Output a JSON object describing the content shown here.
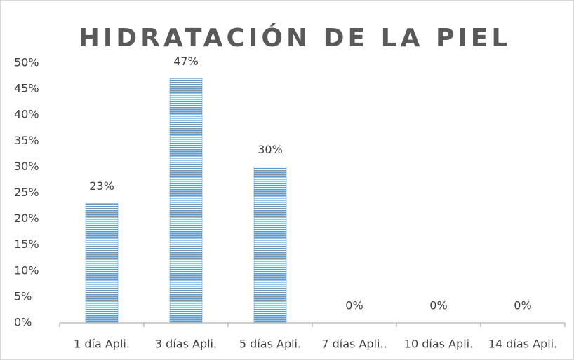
{
  "chart_data": {
    "type": "bar",
    "title": "HIDRATACIÓN DE LA PIEL",
    "categories": [
      "1 día Apli.",
      "3 días Apli.",
      "5 días Apli.",
      "7 días Apli..",
      "10 días Apli.",
      "14 días Apli."
    ],
    "values": [
      23,
      47,
      30,
      0,
      0,
      0
    ],
    "value_labels": [
      "23%",
      "47%",
      "30%",
      "0%",
      "0%",
      "0%"
    ],
    "color": "#5b9bd5",
    "ylim": [
      0,
      50
    ],
    "yticks": [
      {
        "value": 0,
        "label": "0%"
      },
      {
        "value": 5,
        "label": "5%"
      },
      {
        "value": 10,
        "label": "10%"
      },
      {
        "value": 15,
        "label": "15%"
      },
      {
        "value": 20,
        "label": "20%"
      },
      {
        "value": 25,
        "label": "25%"
      },
      {
        "value": 30,
        "label": "30%"
      },
      {
        "value": 35,
        "label": "35%"
      },
      {
        "value": 40,
        "label": "40%"
      },
      {
        "value": 45,
        "label": "45%"
      },
      {
        "value": 50,
        "label": "50%"
      }
    ],
    "grid": false
  }
}
